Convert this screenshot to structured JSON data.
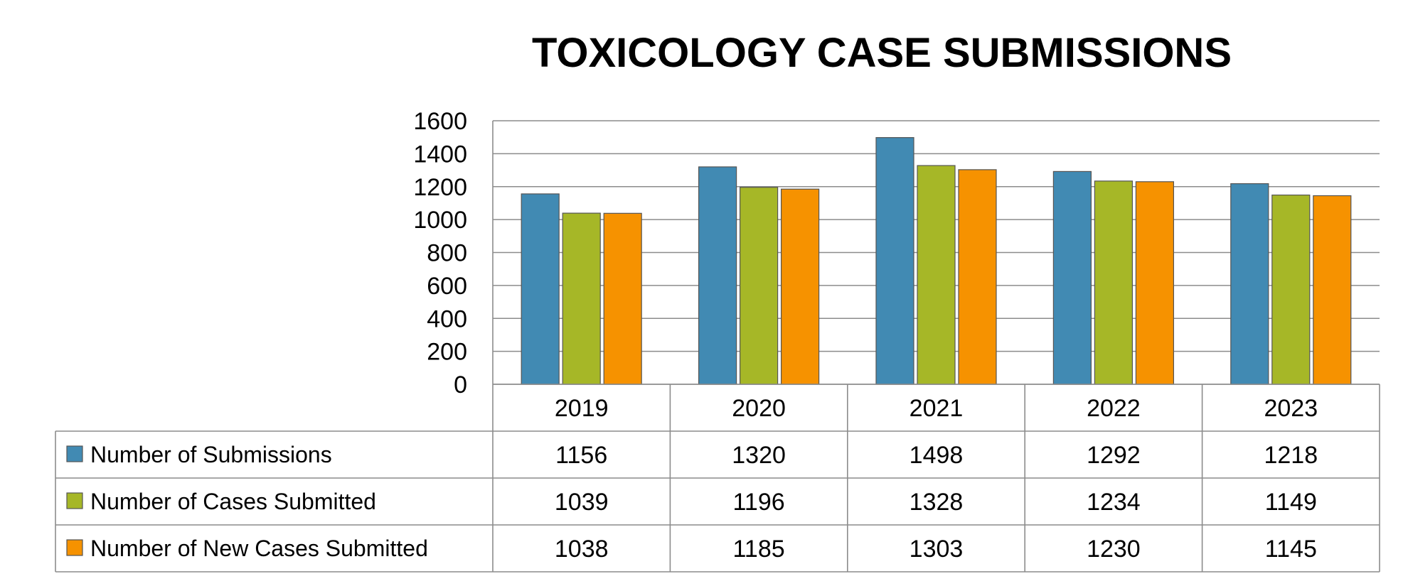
{
  "chart_data": {
    "type": "bar",
    "title": "TOXICOLOGY CASE SUBMISSIONS",
    "categories": [
      "2019",
      "2020",
      "2021",
      "2022",
      "2023"
    ],
    "series": [
      {
        "name": "Number of Submissions",
        "values": [
          1156,
          1320,
          1498,
          1292,
          1218
        ],
        "color": "#418ab3"
      },
      {
        "name": "Number of Cases Submitted",
        "values": [
          1039,
          1196,
          1328,
          1234,
          1149
        ],
        "color": "#a6b727"
      },
      {
        "name": "Number of New Cases Submitted",
        "values": [
          1038,
          1185,
          1303,
          1230,
          1145
        ],
        "color": "#f69200"
      }
    ],
    "ylim": [
      0,
      1600
    ],
    "yticks": [
      "0",
      "200",
      "400",
      "600",
      "800",
      "1000",
      "1200",
      "1400",
      "1600"
    ],
    "grid": true,
    "legend": "data-table-left",
    "data_table": true
  }
}
